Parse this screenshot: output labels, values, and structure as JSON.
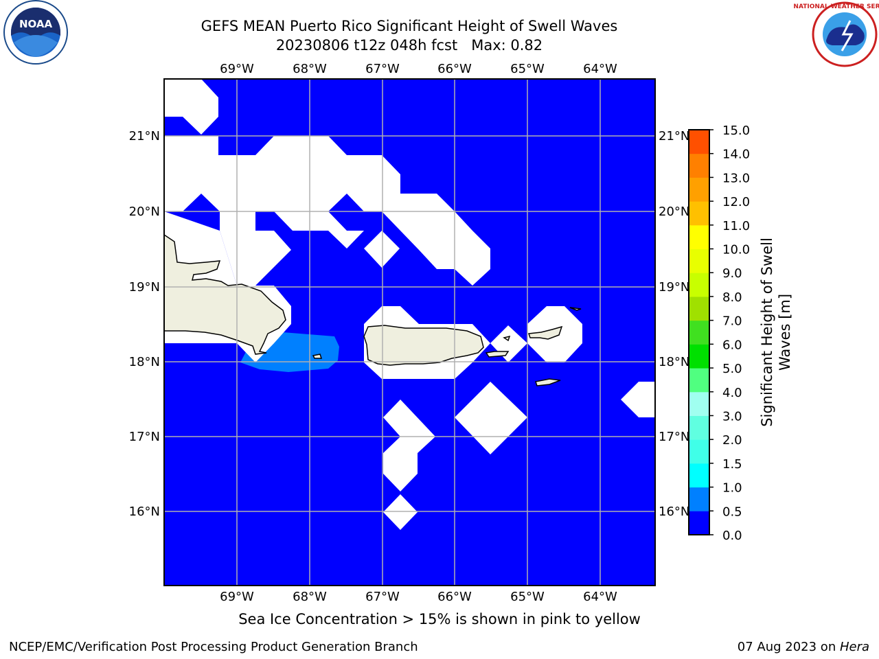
{
  "header": {
    "title": "GEFS MEAN Puerto Rico Significant Height of Swell Waves",
    "subtitle": "20230806 t12z 048h fcst   Max: 0.82"
  },
  "logos": {
    "left_text": "NOAA",
    "right_text": "NATIONAL WEATHER SERVICE"
  },
  "map": {
    "lon_labels": [
      "69°W",
      "68°W",
      "67°W",
      "66°W",
      "65°W",
      "64°W"
    ],
    "lat_labels": [
      "21°N",
      "20°N",
      "19°N",
      "18°N",
      "17°N",
      "16°N"
    ],
    "ocean_color": "#0000ff",
    "swell_color": "#0080ff",
    "land_color": "#efefdf",
    "missing_color": "#ffffff"
  },
  "colorbar": {
    "label_line1": "Significant Height of Swell",
    "label_line2": "Waves [m]",
    "ticks": [
      "0.0",
      "0.5",
      "1.0",
      "1.5",
      "2.0",
      "3.0",
      "4.0",
      "5.0",
      "6.0",
      "7.0",
      "8.0",
      "9.0",
      "10.0",
      "11.0",
      "12.0",
      "13.0",
      "14.0",
      "15.0"
    ],
    "colors": [
      "#0000ff",
      "#0080ff",
      "#00ffff",
      "#40ffe8",
      "#60ffe0",
      "#a0fff0",
      "#50ff80",
      "#00e000",
      "#40e020",
      "#a0e000",
      "#c8ff00",
      "#e8ff00",
      "#ffff00",
      "#ffc000",
      "#ffa000",
      "#ff8000",
      "#ff5000",
      "#ff2000",
      "#ff0000"
    ]
  },
  "chart_data": {
    "type": "heatmap",
    "title": "GEFS MEAN Puerto Rico Significant Height of Swell Waves",
    "subtitle": "20230806 t12z 048h fcst   Max: 0.82",
    "xlabel": "",
    "ylabel": "",
    "lon_ticks": [
      -69,
      -68,
      -67,
      -66,
      -65,
      -64
    ],
    "lat_ticks": [
      21,
      20,
      19,
      18,
      17,
      16
    ],
    "lon_range": [
      -70,
      -63.25
    ],
    "lat_range": [
      15,
      21.75
    ],
    "max_value": 0.82,
    "field_summary": [
      {
        "range": "0.0-0.5",
        "color": "#0000ff",
        "coverage": "most ocean"
      },
      {
        "range": "0.5-1.0",
        "color": "#0080ff",
        "coverage": "Mona Passage / south of Hispaniola near 68°W 18°N"
      }
    ],
    "colorbar_bounds": [
      0.0,
      0.5,
      1.0,
      1.5,
      2.0,
      3.0,
      4.0,
      5.0,
      6.0,
      7.0,
      8.0,
      9.0,
      10.0,
      11.0,
      12.0,
      13.0,
      14.0,
      15.0
    ],
    "colorbar_label": "Significant Height of Swell Waves [m]"
  },
  "footer": {
    "caption": "Sea Ice Concentration > 15% is shown in pink to yellow",
    "left": "NCEP/EMC/Verification Post Processing Product Generation Branch",
    "right_date": "07 Aug 2023 on ",
    "right_host": "Hera"
  }
}
